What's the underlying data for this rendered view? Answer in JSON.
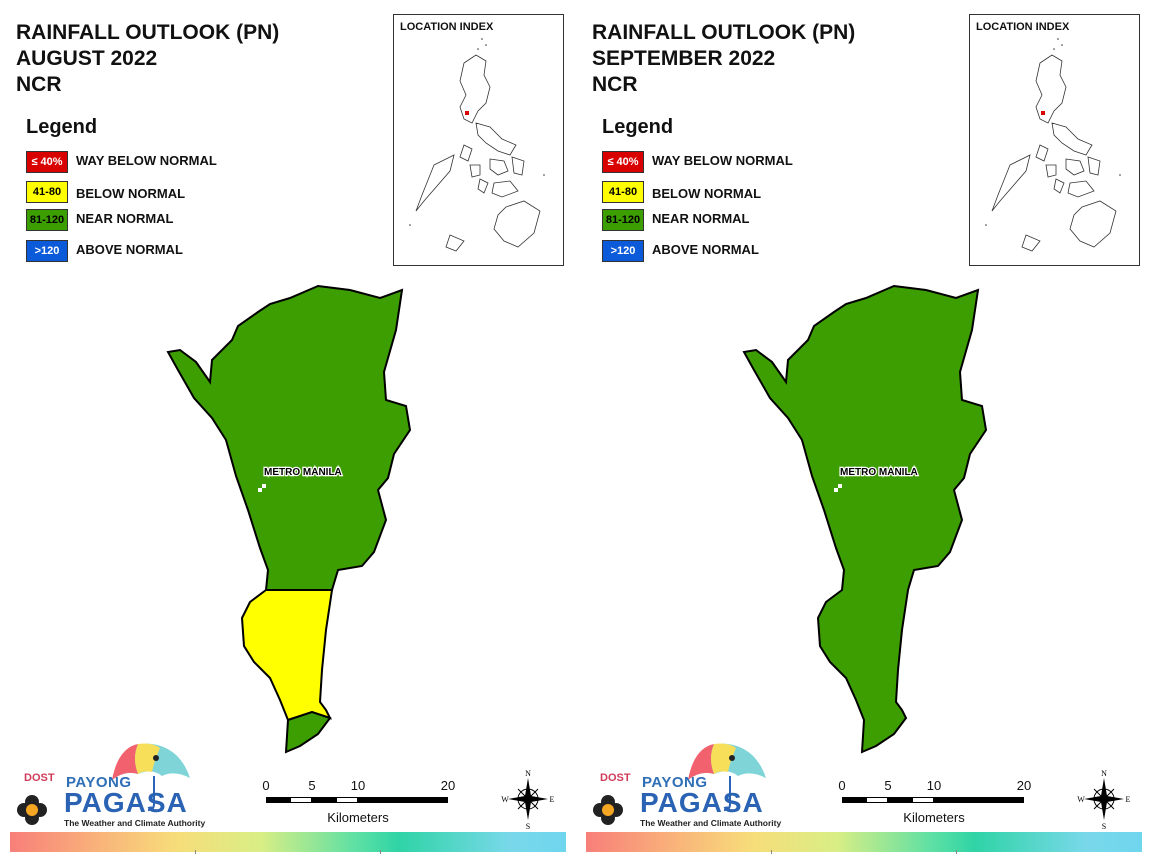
{
  "colors": {
    "way_below": "#d90000",
    "below": "#ffff00",
    "near": "#3c9e00",
    "above": "#0b5ad9",
    "outline": "#000000"
  },
  "legend": {
    "title": "Legend",
    "items": [
      {
        "range": "≤ 40%",
        "label": "WAY BELOW NORMAL"
      },
      {
        "range": "41-80",
        "label": "BELOW NORMAL"
      },
      {
        "range": "81-120",
        "label": "NEAR NORMAL"
      },
      {
        "range": ">120",
        "label": "ABOVE NORMAL"
      }
    ]
  },
  "inset": {
    "label": "LOCATION INDEX"
  },
  "region_label": "METRO MANILA",
  "scalebar": {
    "ticks": [
      "0",
      "5",
      "10",
      "20"
    ],
    "units": "Kilometers"
  },
  "compass": {
    "n": "N",
    "s": "S",
    "e": "E",
    "w": "W"
  },
  "logo": {
    "dost": "DOST",
    "payong": "PAYONG",
    "pagasa": "PAGASA",
    "tagline": "The Weather and Climate Authority"
  },
  "panels": [
    {
      "title_line1": "RAINFALL OUTLOOK (PN)",
      "title_line2": "AUGUST 2022",
      "title_line3": "NCR",
      "categories_shown": [
        "NEAR NORMAL",
        "BELOW NORMAL"
      ]
    },
    {
      "title_line1": "RAINFALL OUTLOOK (PN)",
      "title_line2": "SEPTEMBER 2022",
      "title_line3": "NCR",
      "categories_shown": [
        "NEAR NORMAL"
      ]
    }
  ]
}
